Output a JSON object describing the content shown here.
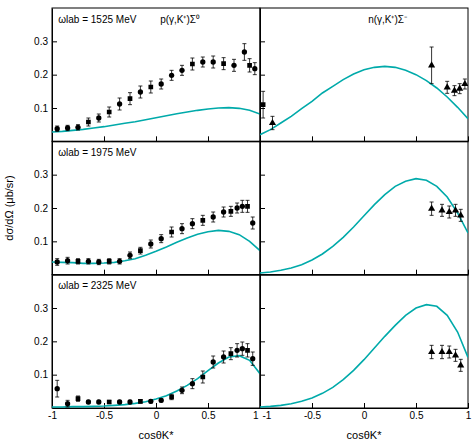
{
  "chart_data": [
    {
      "type": "line",
      "xlim": [
        -1,
        1
      ],
      "ylim": [
        0,
        0.4
      ],
      "xticks": [
        -1,
        -0.5,
        0,
        0.5,
        1
      ],
      "yticks": [
        0.1,
        0.2,
        0.3
      ],
      "tick_labels": "y",
      "annotations": [
        "ωlab = 1525 MeV",
        "p(γ,K⁺)Σ⁰"
      ],
      "series": [
        {
          "type": "line",
          "color": "#00AAAA",
          "x": [
            -1.0,
            -0.9,
            -0.8,
            -0.7,
            -0.6,
            -0.5,
            -0.4,
            -0.3,
            -0.2,
            -0.1,
            0.0,
            0.1,
            0.2,
            0.3,
            0.4,
            0.5,
            0.6,
            0.7,
            0.8,
            0.9,
            1.0
          ],
          "values": [
            0.028,
            0.03,
            0.033,
            0.036,
            0.04,
            0.044,
            0.049,
            0.054,
            0.059,
            0.065,
            0.071,
            0.077,
            0.083,
            0.088,
            0.093,
            0.097,
            0.1,
            0.101,
            0.099,
            0.093,
            0.082
          ]
        },
        {
          "type": "scatter",
          "marker": "circle",
          "color": "#000000",
          "x": [
            -0.95,
            -0.85,
            -0.75,
            -0.55,
            -0.35,
            -0.15,
            0.05,
            0.15,
            0.25,
            0.45,
            0.55,
            0.75,
            0.85,
            0.95
          ],
          "values": [
            0.038,
            0.04,
            0.042,
            0.07,
            0.112,
            0.148,
            0.172,
            0.198,
            0.213,
            0.238,
            0.238,
            0.228,
            0.268,
            0.218
          ],
          "errors": [
            0.008,
            0.008,
            0.008,
            0.012,
            0.018,
            0.018,
            0.015,
            0.015,
            0.015,
            0.015,
            0.018,
            0.018,
            0.025,
            0.018
          ]
        },
        {
          "type": "scatter",
          "marker": "square",
          "color": "#000000",
          "x": [
            -0.65,
            -0.45,
            -0.25,
            -0.05,
            0.35,
            0.65,
            0.9
          ],
          "values": [
            0.058,
            0.088,
            0.128,
            0.163,
            0.232,
            0.233,
            0.228
          ],
          "errors": [
            0.012,
            0.015,
            0.018,
            0.018,
            0.018,
            0.018,
            0.02
          ]
        }
      ]
    },
    {
      "type": "line",
      "xlim": [
        -1,
        1
      ],
      "ylim": [
        0,
        0.4
      ],
      "xticks": [
        -1,
        -0.5,
        0,
        0.5,
        1
      ],
      "yticks": [
        0.1,
        0.2,
        0.3
      ],
      "tick_labels": false,
      "annotations": [
        "n(γ,K⁺)Σ⁻"
      ],
      "series": [
        {
          "type": "line",
          "color": "#00AAAA",
          "x": [
            -1.0,
            -0.9,
            -0.8,
            -0.7,
            -0.6,
            -0.5,
            -0.4,
            -0.3,
            -0.2,
            -0.1,
            0.0,
            0.1,
            0.2,
            0.3,
            0.4,
            0.5,
            0.6,
            0.7,
            0.8,
            0.9,
            1.0
          ],
          "values": [
            0.02,
            0.035,
            0.055,
            0.075,
            0.098,
            0.12,
            0.145,
            0.165,
            0.185,
            0.202,
            0.215,
            0.222,
            0.225,
            0.222,
            0.213,
            0.2,
            0.182,
            0.16,
            0.133,
            0.102,
            0.068
          ]
        },
        {
          "type": "scatter",
          "marker": "square",
          "color": "#000000",
          "x": [
            -0.97
          ],
          "values": [
            0.11
          ],
          "errors": [
            0.04
          ]
        },
        {
          "type": "scatter",
          "marker": "triangle",
          "color": "#000000",
          "x": [
            -0.88,
            0.65,
            0.8,
            0.87,
            0.92,
            0.97
          ],
          "values": [
            0.055,
            0.228,
            0.162,
            0.152,
            0.158,
            0.172
          ],
          "errors": [
            0.02,
            0.055,
            0.018,
            0.015,
            0.015,
            0.015
          ]
        }
      ]
    },
    {
      "type": "line",
      "xlim": [
        -1,
        1
      ],
      "ylim": [
        0,
        0.4
      ],
      "xticks": [
        -1,
        -0.5,
        0,
        0.5,
        1
      ],
      "yticks": [
        0.1,
        0.2,
        0.3
      ],
      "tick_labels": "y",
      "ylabel": "dσ/dΩ (μb/sr)",
      "annotations": [
        "ωlab = 1975 MeV"
      ],
      "series": [
        {
          "type": "line",
          "color": "#00AAAA",
          "x": [
            -1.0,
            -0.9,
            -0.8,
            -0.7,
            -0.6,
            -0.5,
            -0.4,
            -0.3,
            -0.2,
            -0.1,
            0.0,
            0.1,
            0.2,
            0.3,
            0.4,
            0.5,
            0.6,
            0.7,
            0.8,
            0.9,
            1.0
          ],
          "values": [
            0.038,
            0.037,
            0.036,
            0.034,
            0.034,
            0.035,
            0.037,
            0.042,
            0.048,
            0.058,
            0.07,
            0.083,
            0.097,
            0.11,
            0.121,
            0.129,
            0.133,
            0.13,
            0.12,
            0.1,
            0.072
          ]
        },
        {
          "type": "scatter",
          "marker": "circle",
          "color": "#000000",
          "x": [
            -0.95,
            -0.85,
            -0.65,
            -0.55,
            -0.35,
            -0.25,
            -0.05,
            0.05,
            0.25,
            0.35,
            0.55,
            0.65,
            0.78,
            0.83,
            0.93
          ],
          "values": [
            0.038,
            0.042,
            0.04,
            0.038,
            0.04,
            0.058,
            0.092,
            0.108,
            0.138,
            0.153,
            0.173,
            0.188,
            0.2,
            0.205,
            0.155
          ],
          "errors": [
            0.01,
            0.01,
            0.008,
            0.008,
            0.008,
            0.01,
            0.012,
            0.012,
            0.015,
            0.015,
            0.015,
            0.015,
            0.015,
            0.018,
            0.018
          ]
        },
        {
          "type": "scatter",
          "marker": "square",
          "color": "#000000",
          "x": [
            -0.75,
            -0.45,
            -0.15,
            0.15,
            0.45,
            0.72,
            0.88
          ],
          "values": [
            0.04,
            0.04,
            0.072,
            0.128,
            0.163,
            0.19,
            0.205
          ],
          "errors": [
            0.008,
            0.008,
            0.01,
            0.015,
            0.015,
            0.015,
            0.018
          ]
        }
      ]
    },
    {
      "type": "line",
      "xlim": [
        -1,
        1
      ],
      "ylim": [
        0,
        0.4
      ],
      "xticks": [
        -1,
        -0.5,
        0,
        0.5,
        1
      ],
      "yticks": [
        0.1,
        0.2,
        0.3
      ],
      "tick_labels": false,
      "series": [
        {
          "type": "line",
          "color": "#00AAAA",
          "x": [
            -1.0,
            -0.9,
            -0.8,
            -0.7,
            -0.6,
            -0.5,
            -0.4,
            -0.3,
            -0.2,
            -0.1,
            0.0,
            0.1,
            0.2,
            0.3,
            0.4,
            0.5,
            0.6,
            0.7,
            0.8,
            0.9,
            1.0
          ],
          "values": [
            0.005,
            0.008,
            0.013,
            0.02,
            0.03,
            0.044,
            0.062,
            0.085,
            0.112,
            0.143,
            0.177,
            0.21,
            0.24,
            0.265,
            0.28,
            0.288,
            0.283,
            0.265,
            0.233,
            0.185,
            0.125
          ]
        },
        {
          "type": "scatter",
          "marker": "triangle",
          "color": "#000000",
          "x": [
            0.65,
            0.75,
            0.82,
            0.88,
            0.93
          ],
          "values": [
            0.198,
            0.193,
            0.188,
            0.193,
            0.178
          ],
          "errors": [
            0.02,
            0.018,
            0.018,
            0.018,
            0.018
          ]
        }
      ]
    },
    {
      "type": "line",
      "xlim": [
        -1,
        1
      ],
      "ylim": [
        0,
        0.4
      ],
      "xticks": [
        -1,
        -0.5,
        0,
        0.5,
        1
      ],
      "yticks": [
        0.1,
        0.2,
        0.3
      ],
      "xlabel": "cosθK*",
      "annotations": [
        "ωlab = 2325 MeV"
      ],
      "series": [
        {
          "type": "line",
          "color": "#00AAAA",
          "x": [
            -1.0,
            -0.9,
            -0.8,
            -0.7,
            -0.6,
            -0.5,
            -0.4,
            -0.3,
            -0.2,
            -0.1,
            0.0,
            0.1,
            0.2,
            0.3,
            0.4,
            0.5,
            0.6,
            0.7,
            0.8,
            0.9,
            1.0
          ],
          "values": [
            0.003,
            0.003,
            0.004,
            0.004,
            0.005,
            0.006,
            0.008,
            0.01,
            0.014,
            0.019,
            0.027,
            0.037,
            0.051,
            0.068,
            0.088,
            0.112,
            0.135,
            0.153,
            0.157,
            0.143,
            0.103
          ]
        },
        {
          "type": "scatter",
          "marker": "circle",
          "color": "#000000",
          "x": [
            -0.95,
            -0.85,
            -0.65,
            -0.55,
            -0.35,
            -0.25,
            -0.05,
            0.05,
            0.25,
            0.35,
            0.55,
            0.65,
            0.78,
            0.83,
            0.93
          ],
          "values": [
            0.058,
            0.013,
            0.018,
            0.018,
            0.018,
            0.018,
            0.02,
            0.023,
            0.053,
            0.073,
            0.138,
            0.153,
            0.173,
            0.178,
            0.148
          ],
          "errors": [
            0.025,
            0.01,
            0.005,
            0.005,
            0.005,
            0.005,
            0.005,
            0.005,
            0.01,
            0.015,
            0.018,
            0.018,
            0.02,
            0.02,
            0.02
          ]
        },
        {
          "type": "scatter",
          "marker": "square",
          "color": "#000000",
          "x": [
            -0.75,
            -0.45,
            -0.15,
            0.15,
            0.45,
            0.72,
            0.88
          ],
          "values": [
            0.028,
            0.018,
            0.02,
            0.033,
            0.093,
            0.163,
            0.173
          ],
          "errors": [
            0.008,
            0.005,
            0.005,
            0.008,
            0.018,
            0.018,
            0.02
          ]
        }
      ]
    },
    {
      "type": "line",
      "xlim": [
        -1,
        1
      ],
      "ylim": [
        0,
        0.4
      ],
      "xticks": [
        -1,
        -0.5,
        0,
        0.5,
        1
      ],
      "yticks": [
        0.1,
        0.2,
        0.3
      ],
      "tick_labels": "x",
      "xlabel": "cosθK*",
      "series": [
        {
          "type": "line",
          "color": "#00AAAA",
          "x": [
            -1.0,
            -0.9,
            -0.8,
            -0.7,
            -0.6,
            -0.5,
            -0.4,
            -0.3,
            -0.2,
            -0.1,
            0.0,
            0.1,
            0.2,
            0.3,
            0.4,
            0.5,
            0.6,
            0.7,
            0.8,
            0.9,
            1.0
          ],
          "values": [
            0.003,
            0.005,
            0.008,
            0.013,
            0.02,
            0.03,
            0.044,
            0.062,
            0.085,
            0.113,
            0.145,
            0.18,
            0.215,
            0.248,
            0.278,
            0.3,
            0.31,
            0.305,
            0.278,
            0.228,
            0.152
          ]
        },
        {
          "type": "scatter",
          "marker": "triangle",
          "color": "#000000",
          "x": [
            0.65,
            0.75,
            0.82,
            0.88,
            0.93
          ],
          "values": [
            0.168,
            0.168,
            0.168,
            0.158,
            0.128
          ],
          "errors": [
            0.02,
            0.02,
            0.018,
            0.018,
            0.018
          ]
        }
      ]
    }
  ]
}
